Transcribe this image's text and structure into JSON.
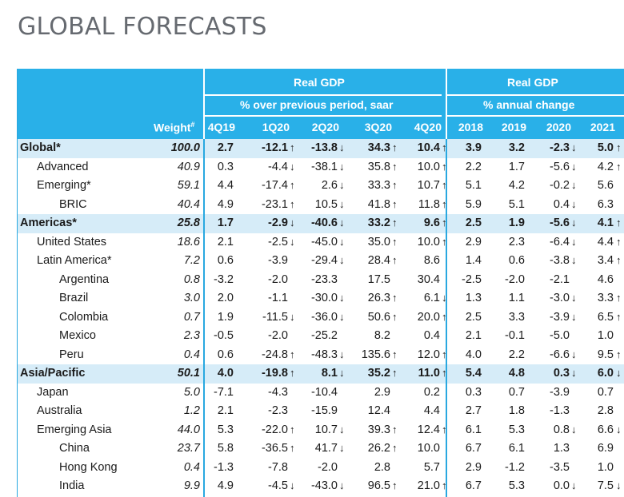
{
  "page": {
    "title": "GLOBAL FORECASTS"
  },
  "header": {
    "group1": {
      "title": "Real GDP",
      "subtitle": "% over previous period, saar"
    },
    "group2": {
      "title": "Real GDP",
      "subtitle": "% annual change"
    },
    "weight_label": "Weight",
    "weight_sup": "#",
    "quarters": [
      "4Q19",
      "1Q20",
      "2Q20",
      "3Q20",
      "4Q20"
    ],
    "years": [
      "2018",
      "2019",
      "2020",
      "2021"
    ]
  },
  "rows": [
    {
      "label": "Global*",
      "level": 0,
      "region": true,
      "weight": "100.0",
      "q": [
        "2.7",
        "-12.1",
        "-13.8",
        "34.3",
        "10.4"
      ],
      "qa": [
        "",
        "up",
        "down",
        "up",
        "up"
      ],
      "y": [
        "3.9",
        "3.2",
        "-2.3",
        "5.0"
      ],
      "ya": [
        "",
        "",
        "down",
        "up"
      ]
    },
    {
      "label": "Advanced",
      "level": 1,
      "region": false,
      "weight": "40.9",
      "q": [
        "0.3",
        "-4.4",
        "-38.1",
        "35.8",
        "10.0"
      ],
      "qa": [
        "",
        "down",
        "down",
        "up",
        "up"
      ],
      "y": [
        "2.2",
        "1.7",
        "-5.6",
        "4.2"
      ],
      "ya": [
        "",
        "",
        "down",
        "up"
      ]
    },
    {
      "label": "Emerging*",
      "level": 1,
      "region": false,
      "weight": "59.1",
      "q": [
        "4.4",
        "-17.4",
        "2.6",
        "33.3",
        "10.7"
      ],
      "qa": [
        "",
        "up",
        "down",
        "up",
        "up"
      ],
      "y": [
        "5.1",
        "4.2",
        "-0.2",
        "5.6"
      ],
      "ya": [
        "",
        "",
        "down",
        ""
      ]
    },
    {
      "label": "BRIC",
      "level": 2,
      "region": false,
      "weight": "40.4",
      "q": [
        "4.9",
        "-23.1",
        "10.5",
        "41.8",
        "11.8"
      ],
      "qa": [
        "",
        "up",
        "down",
        "up",
        "up"
      ],
      "y": [
        "5.9",
        "5.1",
        "0.4",
        "6.3"
      ],
      "ya": [
        "",
        "",
        "down",
        ""
      ]
    },
    {
      "label": "Americas*",
      "level": 0,
      "region": true,
      "weight": "25.8",
      "q": [
        "1.7",
        "-2.9",
        "-40.6",
        "33.2",
        "9.6"
      ],
      "qa": [
        "",
        "down",
        "down",
        "up",
        "up"
      ],
      "y": [
        "2.5",
        "1.9",
        "-5.6",
        "4.1"
      ],
      "ya": [
        "",
        "",
        "down",
        "up"
      ]
    },
    {
      "label": "United States",
      "level": 1,
      "region": false,
      "weight": "18.6",
      "q": [
        "2.1",
        "-2.5",
        "-45.0",
        "35.0",
        "10.0"
      ],
      "qa": [
        "",
        "down",
        "down",
        "up",
        "up"
      ],
      "y": [
        "2.9",
        "2.3",
        "-6.4",
        "4.4"
      ],
      "ya": [
        "",
        "",
        "down",
        "up"
      ]
    },
    {
      "label": "Latin America*",
      "level": 1,
      "region": false,
      "weight": "7.2",
      "q": [
        "0.6",
        "-3.9",
        "-29.4",
        "28.4",
        "8.6"
      ],
      "qa": [
        "",
        "",
        "down",
        "up",
        ""
      ],
      "y": [
        "1.4",
        "0.6",
        "-3.8",
        "3.4"
      ],
      "ya": [
        "",
        "",
        "down",
        "up"
      ]
    },
    {
      "label": "Argentina",
      "level": 2,
      "region": false,
      "weight": "0.8",
      "q": [
        "-3.2",
        "-2.0",
        "-23.3",
        "17.5",
        "30.4"
      ],
      "qa": [
        "",
        "",
        "",
        "",
        ""
      ],
      "y": [
        "-2.5",
        "-2.0",
        "-2.1",
        "4.6"
      ],
      "ya": [
        "",
        "",
        "",
        ""
      ]
    },
    {
      "label": "Brazil",
      "level": 2,
      "region": false,
      "weight": "3.0",
      "q": [
        "2.0",
        "-1.1",
        "-30.0",
        "26.3",
        "6.1"
      ],
      "qa": [
        "",
        "",
        "down",
        "up",
        "down"
      ],
      "y": [
        "1.3",
        "1.1",
        "-3.0",
        "3.3"
      ],
      "ya": [
        "",
        "",
        "down",
        "up"
      ]
    },
    {
      "label": "Colombia",
      "level": 2,
      "region": false,
      "weight": "0.7",
      "q": [
        "1.9",
        "-11.5",
        "-36.0",
        "50.6",
        "20.0"
      ],
      "qa": [
        "",
        "down",
        "down",
        "up",
        "up"
      ],
      "y": [
        "2.5",
        "3.3",
        "-3.9",
        "6.5"
      ],
      "ya": [
        "",
        "",
        "down",
        "up"
      ]
    },
    {
      "label": "Mexico",
      "level": 2,
      "region": false,
      "weight": "2.3",
      "q": [
        "-0.5",
        "-2.0",
        "-25.2",
        "8.2",
        "0.4"
      ],
      "qa": [
        "",
        "",
        "",
        "",
        ""
      ],
      "y": [
        "2.1",
        "-0.1",
        "-5.0",
        "1.0"
      ],
      "ya": [
        "",
        "",
        "",
        ""
      ]
    },
    {
      "label": "Peru",
      "level": 2,
      "region": false,
      "weight": "0.4",
      "q": [
        "0.6",
        "-24.8",
        "-48.3",
        "135.6",
        "12.0"
      ],
      "qa": [
        "",
        "up",
        "down",
        "up",
        "up"
      ],
      "y": [
        "4.0",
        "2.2",
        "-6.6",
        "9.5"
      ],
      "ya": [
        "",
        "",
        "down",
        "up"
      ]
    },
    {
      "label": "Asia/Pacific",
      "level": 0,
      "region": true,
      "weight": "50.1",
      "q": [
        "4.0",
        "-19.8",
        "8.1",
        "35.2",
        "11.0"
      ],
      "qa": [
        "",
        "up",
        "down",
        "up",
        "up"
      ],
      "y": [
        "5.4",
        "4.8",
        "0.3",
        "6.0"
      ],
      "ya": [
        "",
        "",
        "down",
        "down"
      ]
    },
    {
      "label": "Japan",
      "level": 1,
      "region": false,
      "weight": "5.0",
      "q": [
        "-7.1",
        "-4.3",
        "-10.4",
        "2.9",
        "0.2"
      ],
      "qa": [
        "",
        "",
        "",
        "",
        ""
      ],
      "y": [
        "0.3",
        "0.7",
        "-3.9",
        "0.7"
      ],
      "ya": [
        "",
        "",
        "",
        ""
      ]
    },
    {
      "label": "Australia",
      "level": 1,
      "region": false,
      "weight": "1.2",
      "q": [
        "2.1",
        "-2.3",
        "-15.9",
        "12.4",
        "4.4"
      ],
      "qa": [
        "",
        "",
        "",
        "",
        ""
      ],
      "y": [
        "2.7",
        "1.8",
        "-1.3",
        "2.8"
      ],
      "ya": [
        "",
        "",
        "",
        ""
      ]
    },
    {
      "label": "Emerging Asia",
      "level": 1,
      "region": false,
      "weight": "44.0",
      "q": [
        "5.3",
        "-22.0",
        "10.7",
        "39.3",
        "12.4"
      ],
      "qa": [
        "",
        "up",
        "down",
        "up",
        "up"
      ],
      "y": [
        "6.1",
        "5.3",
        "0.8",
        "6.6"
      ],
      "ya": [
        "",
        "",
        "down",
        "down"
      ]
    },
    {
      "label": "China",
      "level": 2,
      "region": false,
      "weight": "23.7",
      "q": [
        "5.8",
        "-36.5",
        "41.7",
        "26.2",
        "10.0"
      ],
      "qa": [
        "",
        "up",
        "down",
        "up",
        ""
      ],
      "y": [
        "6.7",
        "6.1",
        "1.3",
        "6.9"
      ],
      "ya": [
        "",
        "",
        "",
        ""
      ]
    },
    {
      "label": "Hong Kong",
      "level": 2,
      "region": false,
      "weight": "0.4",
      "q": [
        "-1.3",
        "-7.8",
        "-2.0",
        "2.8",
        "5.7"
      ],
      "qa": [
        "",
        "",
        "",
        "",
        ""
      ],
      "y": [
        "2.9",
        "-1.2",
        "-3.5",
        "1.0"
      ],
      "ya": [
        "",
        "",
        "",
        ""
      ]
    },
    {
      "label": "India",
      "level": 2,
      "region": false,
      "weight": "9.9",
      "q": [
        "4.9",
        "-4.5",
        "-43.0",
        "96.5",
        "21.0"
      ],
      "qa": [
        "",
        "down",
        "down",
        "up",
        "up"
      ],
      "y": [
        "6.7",
        "5.3",
        "0.0",
        "7.5"
      ],
      "ya": [
        "",
        "",
        "down",
        "down"
      ]
    }
  ]
}
